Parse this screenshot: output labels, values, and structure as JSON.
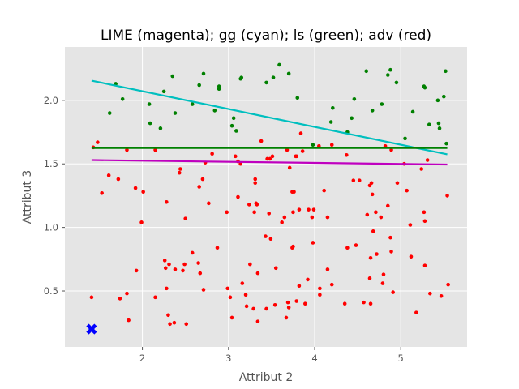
{
  "chart_data": {
    "type": "scatter",
    "title": "LIME (magenta); gg (cyan); ls (green); adv (red)",
    "xlabel": "Attribut 2",
    "ylabel": "Attribut 3",
    "xlim": [
      1.1,
      5.77
    ],
    "ylim": [
      0.06,
      2.42
    ],
    "xticks": [
      2,
      3,
      4,
      5
    ],
    "xtick_labels": [
      "2",
      "3",
      "4",
      "5"
    ],
    "yticks": [
      0.5,
      1.0,
      1.5,
      2.0
    ],
    "ytick_labels": [
      "0.5",
      "1.0",
      "1.5",
      "2.0"
    ],
    "grid": true,
    "background": "#e5e5e5",
    "grid_color": "#ffffff",
    "series": [
      {
        "kind": "points",
        "color": "#008000",
        "points": [
          [
            1.69,
            2.13
          ],
          [
            1.77,
            2.01
          ],
          [
            1.62,
            1.9
          ],
          [
            2.08,
            1.97
          ],
          [
            2.09,
            1.82
          ],
          [
            2.21,
            1.78
          ],
          [
            2.25,
            2.07
          ],
          [
            2.35,
            2.19
          ],
          [
            2.38,
            1.9
          ],
          [
            2.58,
            1.97
          ],
          [
            2.66,
            2.12
          ],
          [
            2.71,
            2.21
          ],
          [
            2.84,
            1.92
          ],
          [
            2.89,
            2.11
          ],
          [
            2.89,
            2.09
          ],
          [
            3.04,
            1.8
          ],
          [
            3.06,
            1.86
          ],
          [
            3.09,
            1.76
          ],
          [
            3.14,
            2.17
          ],
          [
            3.15,
            2.18
          ],
          [
            3.44,
            2.14
          ],
          [
            3.52,
            2.18
          ],
          [
            3.59,
            2.28
          ],
          [
            3.7,
            2.21
          ],
          [
            3.8,
            2.02
          ],
          [
            3.98,
            1.65
          ],
          [
            4.19,
            1.83
          ],
          [
            4.21,
            1.94
          ],
          [
            4.38,
            1.75
          ],
          [
            4.43,
            1.86
          ],
          [
            4.46,
            2.01
          ],
          [
            4.6,
            2.23
          ],
          [
            4.67,
            1.92
          ],
          [
            4.78,
            1.97
          ],
          [
            4.85,
            2.2
          ],
          [
            4.88,
            2.24
          ],
          [
            4.95,
            2.14
          ],
          [
            5.05,
            1.7
          ],
          [
            5.14,
            1.91
          ],
          [
            5.27,
            2.11
          ],
          [
            5.28,
            2.1
          ],
          [
            5.33,
            1.81
          ],
          [
            5.43,
            2.0
          ],
          [
            5.44,
            1.82
          ],
          [
            5.45,
            1.78
          ],
          [
            5.5,
            2.03
          ],
          [
            5.52,
            2.23
          ],
          [
            5.53,
            1.66
          ]
        ]
      },
      {
        "kind": "points",
        "color": "#ff0000",
        "points": [
          [
            1.43,
            1.63
          ],
          [
            1.48,
            1.67
          ],
          [
            1.53,
            1.27
          ],
          [
            1.61,
            1.41
          ],
          [
            1.72,
            1.38
          ],
          [
            1.82,
            1.61
          ],
          [
            1.92,
            1.31
          ],
          [
            1.99,
            1.04
          ],
          [
            2.01,
            1.28
          ],
          [
            2.15,
            1.61
          ],
          [
            2.26,
            0.74
          ],
          [
            2.28,
            1.2
          ],
          [
            2.31,
            0.71
          ],
          [
            2.38,
            0.67
          ],
          [
            2.43,
            1.43
          ],
          [
            2.44,
            1.46
          ],
          [
            2.5,
            1.07
          ],
          [
            2.58,
            0.8
          ],
          [
            2.65,
            0.72
          ],
          [
            2.66,
            1.32
          ],
          [
            2.7,
            1.38
          ],
          [
            2.73,
            1.51
          ],
          [
            2.77,
            1.19
          ],
          [
            2.81,
            1.58
          ],
          [
            2.87,
            0.84
          ],
          [
            2.98,
            1.12
          ],
          [
            3.08,
            1.56
          ],
          [
            3.11,
            1.52
          ],
          [
            3.11,
            1.24
          ],
          [
            3.14,
            1.5
          ],
          [
            3.24,
            1.18
          ],
          [
            3.3,
            1.12
          ],
          [
            3.31,
            1.35
          ],
          [
            3.31,
            1.38
          ],
          [
            3.32,
            1.19
          ],
          [
            3.33,
            1.18
          ],
          [
            3.38,
            1.68
          ],
          [
            3.45,
            1.54
          ],
          [
            3.47,
            1.11
          ],
          [
            3.48,
            1.54
          ],
          [
            3.51,
            1.56
          ],
          [
            3.62,
            1.04
          ],
          [
            3.65,
            1.08
          ],
          [
            3.68,
            1.61
          ],
          [
            3.71,
            1.47
          ],
          [
            3.74,
            1.28
          ],
          [
            3.75,
            1.12
          ],
          [
            3.76,
            1.28
          ],
          [
            3.78,
            1.56
          ],
          [
            3.79,
            1.56
          ],
          [
            3.82,
            1.14
          ],
          [
            3.84,
            1.74
          ],
          [
            3.86,
            1.6
          ],
          [
            3.93,
            1.14
          ],
          [
            3.97,
            1.08
          ],
          [
            3.99,
            1.14
          ],
          [
            4.05,
            1.64
          ],
          [
            4.11,
            1.29
          ],
          [
            4.15,
            1.08
          ],
          [
            4.2,
            1.65
          ],
          [
            4.37,
            1.57
          ],
          [
            4.45,
            1.37
          ],
          [
            4.52,
            1.37
          ],
          [
            4.61,
            1.1
          ],
          [
            4.64,
            1.33
          ],
          [
            4.66,
            1.35
          ],
          [
            4.67,
            1.26
          ],
          [
            4.71,
            1.12
          ],
          [
            4.77,
            1.08
          ],
          [
            4.82,
            1.64
          ],
          [
            4.85,
            1.17
          ],
          [
            4.89,
            1.61
          ],
          [
            4.96,
            1.35
          ],
          [
            5.04,
            1.5
          ],
          [
            5.07,
            1.29
          ],
          [
            5.11,
            1.02
          ],
          [
            5.24,
            1.46
          ],
          [
            5.27,
            1.12
          ],
          [
            5.28,
            1.05
          ],
          [
            5.31,
            1.53
          ],
          [
            5.54,
            1.25
          ],
          [
            1.41,
            0.45
          ],
          [
            1.74,
            0.44
          ],
          [
            1.82,
            0.48
          ],
          [
            1.84,
            0.27
          ],
          [
            1.93,
            0.66
          ],
          [
            2.15,
            0.45
          ],
          [
            2.27,
            0.68
          ],
          [
            2.28,
            0.52
          ],
          [
            2.3,
            0.31
          ],
          [
            2.32,
            0.24
          ],
          [
            2.37,
            0.25
          ],
          [
            2.47,
            0.66
          ],
          [
            2.49,
            0.71
          ],
          [
            2.51,
            0.24
          ],
          [
            2.67,
            0.64
          ],
          [
            2.71,
            0.51
          ],
          [
            2.99,
            0.52
          ],
          [
            3.02,
            0.45
          ],
          [
            3.04,
            0.29
          ],
          [
            3.16,
            0.56
          ],
          [
            3.2,
            0.47
          ],
          [
            3.21,
            0.38
          ],
          [
            3.25,
            0.71
          ],
          [
            3.29,
            0.36
          ],
          [
            3.34,
            0.26
          ],
          [
            3.34,
            0.64
          ],
          [
            3.43,
            0.93
          ],
          [
            3.44,
            0.36
          ],
          [
            3.49,
            0.91
          ],
          [
            3.54,
            0.39
          ],
          [
            3.55,
            0.68
          ],
          [
            3.67,
            0.29
          ],
          [
            3.69,
            0.41
          ],
          [
            3.7,
            0.37
          ],
          [
            3.74,
            0.84
          ],
          [
            3.75,
            0.85
          ],
          [
            3.79,
            0.42
          ],
          [
            3.82,
            0.54
          ],
          [
            3.89,
            0.4
          ],
          [
            3.92,
            0.59
          ],
          [
            3.98,
            0.88
          ],
          [
            4.06,
            0.52
          ],
          [
            4.06,
            0.47
          ],
          [
            4.15,
            0.67
          ],
          [
            4.2,
            0.55
          ],
          [
            4.35,
            0.4
          ],
          [
            4.38,
            0.84
          ],
          [
            4.48,
            0.86
          ],
          [
            4.57,
            0.41
          ],
          [
            4.64,
            0.6
          ],
          [
            4.65,
            0.4
          ],
          [
            4.65,
            0.76
          ],
          [
            4.68,
            0.97
          ],
          [
            4.72,
            0.79
          ],
          [
            4.79,
            0.56
          ],
          [
            4.8,
            0.63
          ],
          [
            4.88,
            0.92
          ],
          [
            4.89,
            0.81
          ],
          [
            4.91,
            0.49
          ],
          [
            5.12,
            0.77
          ],
          [
            5.18,
            0.33
          ],
          [
            5.28,
            0.7
          ],
          [
            5.34,
            0.48
          ],
          [
            5.47,
            0.46
          ],
          [
            5.55,
            0.55
          ]
        ]
      },
      {
        "kind": "line",
        "color": "#00bfbf",
        "points": [
          [
            1.41,
            2.155
          ],
          [
            5.54,
            1.575
          ]
        ]
      },
      {
        "kind": "line",
        "color": "#008000",
        "points": [
          [
            1.41,
            1.625
          ],
          [
            5.54,
            1.625
          ]
        ]
      },
      {
        "kind": "line",
        "color": "#bf00bf",
        "points": [
          [
            1.41,
            1.53
          ],
          [
            5.54,
            1.495
          ]
        ]
      },
      {
        "kind": "marker",
        "color": "#0000ff",
        "marker": "X",
        "point": [
          1.41,
          0.2
        ]
      }
    ]
  }
}
